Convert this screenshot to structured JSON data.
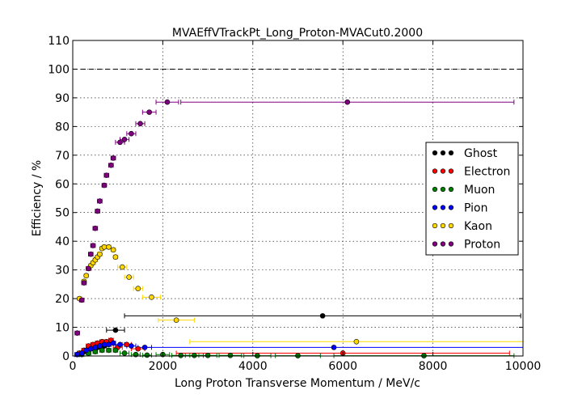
{
  "chart_data": {
    "type": "scatter",
    "title": "MVAEffVTrackPt_Long_Proton-MVACut0.2000",
    "xlabel": "Long Proton Transverse Momentum / MeV/c",
    "ylabel": "Efficiency / %",
    "xlim": [
      0,
      10000
    ],
    "ylim": [
      0,
      110
    ],
    "xticks": [
      0,
      2000,
      4000,
      6000,
      8000,
      10000
    ],
    "yticks": [
      0,
      10,
      20,
      30,
      40,
      50,
      60,
      70,
      80,
      90,
      100,
      110
    ],
    "reference_line": 100,
    "grid": true,
    "legend_position": "right",
    "series": [
      {
        "name": "Ghost",
        "color": "#000000",
        "points": [
          {
            "x": 100,
            "y": 0.5,
            "xerr": 50
          },
          {
            "x": 250,
            "y": 1.5,
            "xerr": 50
          },
          {
            "x": 400,
            "y": 2.5,
            "xerr": 50
          },
          {
            "x": 550,
            "y": 3.0,
            "xerr": 50
          },
          {
            "x": 700,
            "y": 3.5,
            "xerr": 50
          },
          {
            "x": 950,
            "y": 9.0,
            "xerr": 200
          },
          {
            "x": 5550,
            "y": 14.0,
            "xerr": 4400
          }
        ]
      },
      {
        "name": "Electron",
        "color": "#ff0000",
        "points": [
          {
            "x": 150,
            "y": 1.0,
            "xerr": 50
          },
          {
            "x": 250,
            "y": 2.0,
            "xerr": 50
          },
          {
            "x": 350,
            "y": 3.5,
            "xerr": 50
          },
          {
            "x": 450,
            "y": 4.0,
            "xerr": 50
          },
          {
            "x": 550,
            "y": 4.5,
            "xerr": 50
          },
          {
            "x": 650,
            "y": 5.0,
            "xerr": 50
          },
          {
            "x": 750,
            "y": 5.0,
            "xerr": 50
          },
          {
            "x": 850,
            "y": 5.5,
            "xerr": 50
          },
          {
            "x": 1000,
            "y": 3.0,
            "xerr": 100
          },
          {
            "x": 1200,
            "y": 4.0,
            "xerr": 100
          },
          {
            "x": 1450,
            "y": 2.5,
            "xerr": 150
          },
          {
            "x": 6000,
            "y": 1.0,
            "xerr": 3700
          }
        ]
      },
      {
        "name": "Muon",
        "color": "#008000",
        "points": [
          {
            "x": 200,
            "y": 0.5,
            "xerr": 50
          },
          {
            "x": 350,
            "y": 1.0,
            "xerr": 50
          },
          {
            "x": 500,
            "y": 1.5,
            "xerr": 50
          },
          {
            "x": 650,
            "y": 2.0,
            "xerr": 50
          },
          {
            "x": 800,
            "y": 2.0,
            "xerr": 50
          },
          {
            "x": 950,
            "y": 2.0,
            "xerr": 50
          },
          {
            "x": 1150,
            "y": 1.0,
            "xerr": 100
          },
          {
            "x": 1400,
            "y": 0.5,
            "xerr": 100
          },
          {
            "x": 1650,
            "y": 0.3,
            "xerr": 100
          },
          {
            "x": 2000,
            "y": 0.5,
            "xerr": 150
          },
          {
            "x": 2400,
            "y": 0.2,
            "xerr": 200
          },
          {
            "x": 2700,
            "y": 0.2,
            "xerr": 200
          },
          {
            "x": 3000,
            "y": 0.2,
            "xerr": 200
          },
          {
            "x": 3500,
            "y": 0.2,
            "xerr": 250
          },
          {
            "x": 4100,
            "y": 0.1,
            "xerr": 300
          },
          {
            "x": 5000,
            "y": 0.1,
            "xerr": 500
          },
          {
            "x": 7800,
            "y": 0.1,
            "xerr": 2000
          }
        ]
      },
      {
        "name": "Pion",
        "color": "#0000ff",
        "points": [
          {
            "x": 100,
            "y": 0.5,
            "xerr": 50
          },
          {
            "x": 200,
            "y": 1.0,
            "xerr": 50
          },
          {
            "x": 300,
            "y": 2.0,
            "xerr": 50
          },
          {
            "x": 400,
            "y": 2.5,
            "xerr": 50
          },
          {
            "x": 500,
            "y": 3.0,
            "xerr": 50
          },
          {
            "x": 600,
            "y": 3.5,
            "xerr": 50
          },
          {
            "x": 700,
            "y": 4.0,
            "xerr": 50
          },
          {
            "x": 800,
            "y": 4.0,
            "xerr": 50
          },
          {
            "x": 900,
            "y": 4.5,
            "xerr": 50
          },
          {
            "x": 1050,
            "y": 4.0,
            "xerr": 100
          },
          {
            "x": 1300,
            "y": 3.5,
            "xerr": 100
          },
          {
            "x": 1600,
            "y": 3.0,
            "xerr": 150
          },
          {
            "x": 5800,
            "y": 3.0,
            "xerr": 4200
          }
        ]
      },
      {
        "name": "Kaon",
        "color": "#ffd700",
        "points": [
          {
            "x": 150,
            "y": 20.0,
            "xerr": 50
          },
          {
            "x": 250,
            "y": 26.0,
            "xerr": 50
          },
          {
            "x": 300,
            "y": 28.0,
            "xerr": 50
          },
          {
            "x": 350,
            "y": 30.5,
            "xerr": 50
          },
          {
            "x": 400,
            "y": 31.5,
            "xerr": 50
          },
          {
            "x": 450,
            "y": 32.5,
            "xerr": 50
          },
          {
            "x": 500,
            "y": 33.5,
            "xerr": 50
          },
          {
            "x": 550,
            "y": 34.5,
            "xerr": 50
          },
          {
            "x": 600,
            "y": 35.5,
            "xerr": 50
          },
          {
            "x": 650,
            "y": 37.5,
            "xerr": 50
          },
          {
            "x": 700,
            "y": 38.0,
            "xerr": 50
          },
          {
            "x": 800,
            "y": 38.0,
            "xerr": 50
          },
          {
            "x": 900,
            "y": 37.0,
            "xerr": 50
          },
          {
            "x": 950,
            "y": 34.5,
            "xerr": 50
          },
          {
            "x": 1100,
            "y": 31.0,
            "xerr": 100
          },
          {
            "x": 1250,
            "y": 27.5,
            "xerr": 100
          },
          {
            "x": 1450,
            "y": 23.5,
            "xerr": 100
          },
          {
            "x": 1750,
            "y": 20.5,
            "xerr": 200
          },
          {
            "x": 2300,
            "y": 12.5,
            "xerr": 400
          },
          {
            "x": 6300,
            "y": 5.0,
            "xerr": 3700
          }
        ]
      },
      {
        "name": "Proton",
        "color": "#800080",
        "points": [
          {
            "x": 100,
            "y": 8.0,
            "xerr": 50
          },
          {
            "x": 200,
            "y": 19.5,
            "xerr": 50
          },
          {
            "x": 250,
            "y": 25.5,
            "xerr": 50
          },
          {
            "x": 350,
            "y": 30.5,
            "xerr": 50
          },
          {
            "x": 400,
            "y": 35.5,
            "xerr": 50
          },
          {
            "x": 450,
            "y": 38.5,
            "xerr": 50
          },
          {
            "x": 500,
            "y": 44.5,
            "xerr": 50
          },
          {
            "x": 550,
            "y": 50.5,
            "xerr": 50
          },
          {
            "x": 600,
            "y": 54.0,
            "xerr": 50
          },
          {
            "x": 700,
            "y": 59.5,
            "xerr": 50
          },
          {
            "x": 750,
            "y": 63.0,
            "xerr": 50
          },
          {
            "x": 850,
            "y": 66.5,
            "xerr": 50
          },
          {
            "x": 900,
            "y": 69.0,
            "xerr": 50
          },
          {
            "x": 1050,
            "y": 74.5,
            "xerr": 100
          },
          {
            "x": 1150,
            "y": 75.5,
            "xerr": 100
          },
          {
            "x": 1300,
            "y": 77.5,
            "xerr": 100
          },
          {
            "x": 1500,
            "y": 81.0,
            "xerr": 100
          },
          {
            "x": 1700,
            "y": 85.0,
            "xerr": 150
          },
          {
            "x": 2100,
            "y": 88.5,
            "xerr": 250
          },
          {
            "x": 6100,
            "y": 88.5,
            "xerr": 3700
          }
        ]
      }
    ]
  }
}
